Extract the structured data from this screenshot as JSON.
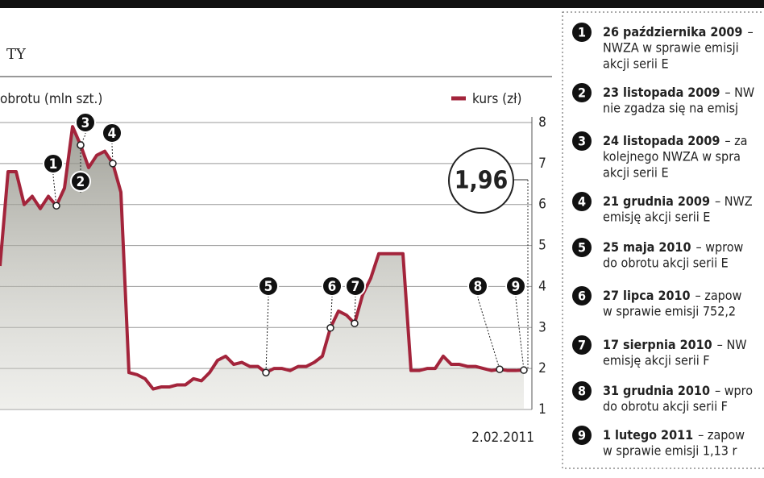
{
  "chart_data": {
    "type": "line",
    "title": "TY",
    "y2_label": "obrotu (mln szt.)",
    "categories": [
      null,
      null,
      null,
      null,
      null,
      null,
      null,
      null,
      null,
      null,
      null,
      null,
      null,
      null,
      null,
      null,
      null,
      null,
      null,
      null,
      null,
      null,
      null,
      null,
      null,
      null,
      null,
      null,
      null,
      null,
      null,
      null,
      null,
      null,
      null,
      null,
      null,
      null,
      null,
      null,
      null,
      null,
      null,
      null,
      null,
      null,
      null,
      null,
      null,
      null,
      null,
      null,
      null,
      null,
      null,
      null,
      null,
      null,
      null,
      null,
      null,
      null,
      null,
      null,
      null,
      "2.02.2011"
    ],
    "series": [
      {
        "name": "kurs (zł)",
        "color": "#a3243b",
        "values": [
          4.5,
          6.8,
          6.8,
          6.0,
          6.2,
          5.9,
          6.2,
          5.97,
          6.4,
          7.9,
          7.45,
          6.9,
          7.2,
          7.3,
          7.0,
          6.3,
          1.9,
          1.85,
          1.75,
          1.5,
          1.55,
          1.55,
          1.6,
          1.6,
          1.75,
          1.7,
          1.9,
          2.2,
          2.3,
          2.1,
          2.15,
          2.05,
          2.05,
          1.9,
          2.0,
          2.0,
          1.95,
          2.05,
          2.05,
          2.15,
          2.3,
          2.99,
          3.4,
          3.3,
          3.1,
          3.8,
          4.2,
          4.8,
          4.8,
          4.8,
          4.8,
          1.95,
          1.95,
          2.0,
          2.0,
          2.3,
          2.1,
          2.1,
          2.05,
          2.05,
          2.0,
          1.95,
          1.98,
          1.95,
          1.95,
          1.96
        ]
      }
    ],
    "ylim": [
      1,
      8
    ],
    "yticks": [
      1,
      2,
      3,
      4,
      5,
      6,
      7,
      8
    ],
    "grid": true,
    "callout": {
      "value": 1.96,
      "label": "1,96"
    },
    "events": [
      {
        "number": "1",
        "point": 7,
        "date": "26 października 2009",
        "lines": [
          "–",
          "NWZA w sprawie emisji",
          "akcji serii E"
        ]
      },
      {
        "number": "2",
        "point": 10,
        "date": "23 listopada 2009",
        "lines": [
          "– NW",
          "nie zgadza się na emisj"
        ]
      },
      {
        "number": "3",
        "point": 10,
        "date": "24 listopada 2009",
        "lines": [
          "– za",
          "kolejnego NWZA w spra",
          "akcji serii E"
        ]
      },
      {
        "number": "4",
        "point": 14,
        "date": "21 grudnia 2009",
        "lines": [
          "– NWZ",
          "emisję akcji serii E"
        ]
      },
      {
        "number": "5",
        "point": 33,
        "date": "25 maja 2010",
        "lines": [
          "– wprow",
          "do obrotu akcji serii E"
        ]
      },
      {
        "number": "6",
        "point": 41,
        "date": "27 lipca 2010",
        "lines": [
          "– zapow",
          "w sprawie emisji 752,2"
        ]
      },
      {
        "number": "7",
        "point": 44,
        "date": "17 sierpnia 2010",
        "lines": [
          "– NW",
          "emisję akcji serii F"
        ]
      },
      {
        "number": "8",
        "point": 62,
        "date": "31 grudnia 2010",
        "lines": [
          "– wpro",
          "do obrotu akcji serii F"
        ]
      },
      {
        "number": "9",
        "point": 65,
        "date": "1 lutego 2011",
        "lines": [
          "– zapow",
          "w sprawie emisji 1,13 r"
        ]
      }
    ]
  }
}
